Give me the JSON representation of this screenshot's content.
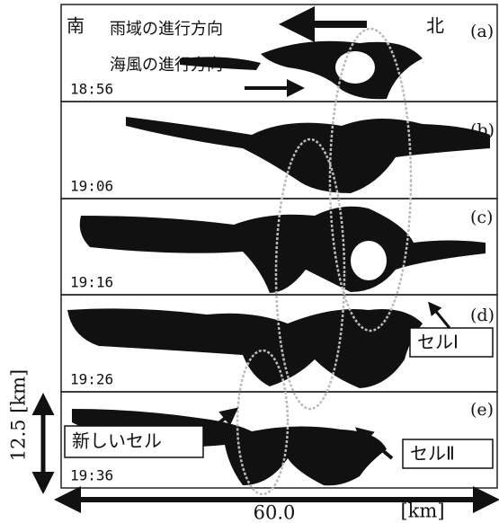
{
  "panels": [
    {
      "label": "(a)",
      "time": "18:56"
    },
    {
      "label": "(b)",
      "time": "19:06"
    },
    {
      "label": "(c)",
      "time": "19:16"
    },
    {
      "label": "(d)",
      "time": "19:26"
    },
    {
      "label": "(e)",
      "time": "19:36"
    }
  ],
  "annotations": {
    "south": "南",
    "north": "北",
    "rain_direction": "雨域の進行方向",
    "sea_breeze_direction": "海風の進行方向",
    "cell_1": "セルⅠ",
    "new_cell": "新しいセル",
    "cell_2": "セルⅡ"
  },
  "scale": {
    "vertical": "12.5 [km]",
    "horizontal_value": "60.0",
    "horizontal_unit": "[km]"
  }
}
